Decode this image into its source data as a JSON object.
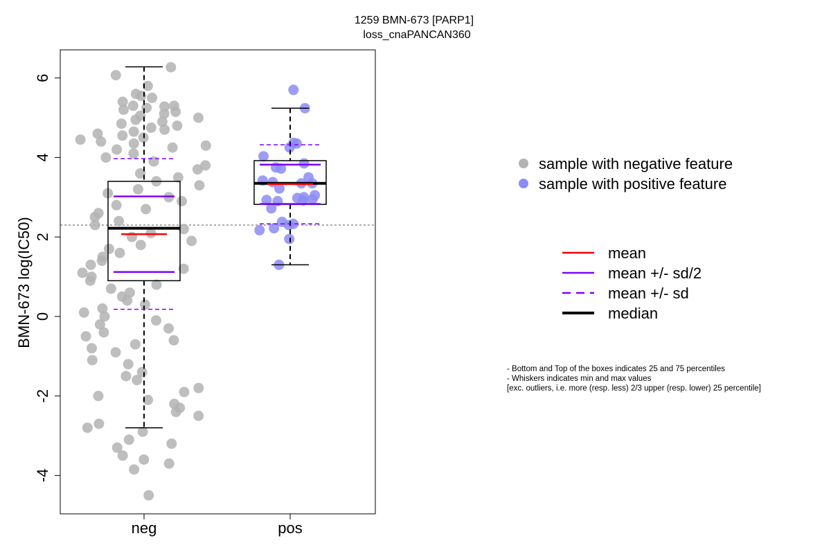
{
  "chart_data": {
    "type": "scatter",
    "title": "1259 BMN-673 [PARP1]",
    "subtitle": "loss_cnaPANCAN360",
    "xlabel": "",
    "ylabel": "BMN-673 log(IC50)",
    "categories": [
      "neg",
      "pos"
    ],
    "ylim": [
      -4.9,
      6.7
    ],
    "yticks": [
      -4,
      -2,
      0,
      2,
      4,
      6
    ],
    "reference_line": 2.3,
    "colors": {
      "neg": "#b3b3b3",
      "pos": "#8c8cf5",
      "mean": "#ff0000",
      "sd": "#8000ff",
      "median": "#000000"
    },
    "boxes": [
      {
        "name": "neg",
        "whisker_low": -2.8,
        "q1": 0.9,
        "median": 2.22,
        "q3": 3.4,
        "whisker_high": 6.28,
        "mean": 2.07,
        "sd_half_low": 1.12,
        "sd_half_high": 3.02,
        "sd_low": 0.18,
        "sd_high": 3.97
      },
      {
        "name": "pos",
        "whisker_low": 1.3,
        "q1": 2.82,
        "median": 3.35,
        "q3": 3.92,
        "whisker_high": 5.24,
        "mean": 3.33,
        "sd_half_low": 2.83,
        "sd_half_high": 3.82,
        "sd_low": 2.33,
        "sd_high": 4.32
      }
    ],
    "series": [
      {
        "name": "sample with negative feature",
        "category": "neg",
        "values": [
          6.27,
          6.07,
          5.8,
          5.6,
          5.55,
          5.5,
          5.4,
          5.3,
          5.25,
          5.3,
          5.28,
          5.2,
          5.15,
          5.1,
          5.05,
          5.0,
          4.95,
          4.9,
          4.85,
          4.8,
          4.75,
          4.7,
          4.65,
          4.6,
          4.55,
          4.5,
          4.45,
          4.4,
          4.35,
          4.3,
          4.25,
          4.2,
          4.1,
          4.0,
          3.9,
          3.8,
          3.7,
          3.6,
          3.5,
          3.4,
          3.3,
          3.2,
          3.1,
          3.0,
          2.9,
          2.8,
          2.7,
          2.6,
          2.5,
          2.4,
          2.3,
          2.2,
          2.1,
          2.0,
          1.9,
          1.8,
          1.7,
          1.6,
          1.5,
          1.4,
          1.3,
          1.2,
          1.1,
          1.0,
          0.9,
          0.8,
          0.7,
          0.6,
          0.5,
          0.4,
          0.3,
          0.2,
          0.1,
          0.0,
          -0.1,
          -0.2,
          -0.3,
          -0.4,
          -0.5,
          -0.6,
          -0.7,
          -0.8,
          -0.9,
          -1.1,
          -1.2,
          -1.4,
          -1.5,
          -1.6,
          -1.8,
          -1.9,
          -2.0,
          -2.1,
          -2.2,
          -2.3,
          -2.4,
          -2.5,
          -2.7,
          -2.8,
          -2.9,
          -3.1,
          -3.2,
          -3.3,
          -3.5,
          -3.6,
          -3.7,
          -3.85,
          -4.5
        ]
      },
      {
        "name": "sample with positive feature",
        "category": "pos",
        "values": [
          5.7,
          5.24,
          4.37,
          4.35,
          4.25,
          4.03,
          3.85,
          3.75,
          3.72,
          3.5,
          3.42,
          3.38,
          3.35,
          3.35,
          3.22,
          3.05,
          3.0,
          2.98,
          2.95,
          2.93,
          2.92,
          2.9,
          2.72,
          2.38,
          2.33,
          2.3,
          2.22,
          2.17,
          1.95,
          1.3
        ]
      }
    ],
    "legend": {
      "points": [
        {
          "label": "sample with negative feature",
          "color": "#b3b3b3"
        },
        {
          "label": "sample with positive feature",
          "color": "#8c8cf5"
        }
      ],
      "lines": [
        {
          "label": "mean",
          "color": "#ff0000",
          "style": "solid"
        },
        {
          "label": "mean +/- sd/2",
          "color": "#8000ff",
          "style": "solid"
        },
        {
          "label": "mean +/- sd",
          "color": "#8000ff",
          "style": "dashed"
        },
        {
          "label": "median",
          "color": "#000000",
          "style": "thick"
        }
      ]
    },
    "notes": [
      "- Bottom and Top of the boxes indicates 25 and 75 percentiles",
      "- Whiskers indicates min and max values",
      "[exc. outliers, i.e. more (resp. less) 2/3 upper (resp. lower) 25 percentile]"
    ]
  }
}
